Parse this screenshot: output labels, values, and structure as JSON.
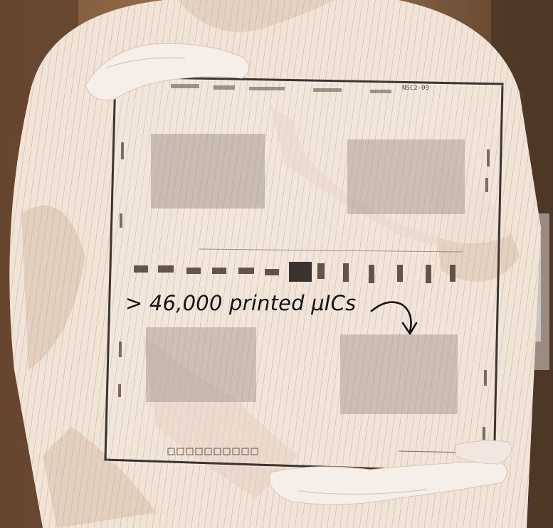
{
  "photo": {
    "subject": "gloved-hands-holding-glass-panel",
    "colors": {
      "background": "#3a2a1c",
      "suit": "#f1e3d6",
      "stripe": "#c9b8ab",
      "shadow": "#c8a893",
      "panel_edge": "#3a3530",
      "device_block": "#9a8a80",
      "die_mark": "#4b3a30"
    }
  },
  "annotation": {
    "text": "> 46,000 printed μICs",
    "arrow_icon": "curved-arrow-icon"
  },
  "panel_edge_label": "NSC2-09"
}
